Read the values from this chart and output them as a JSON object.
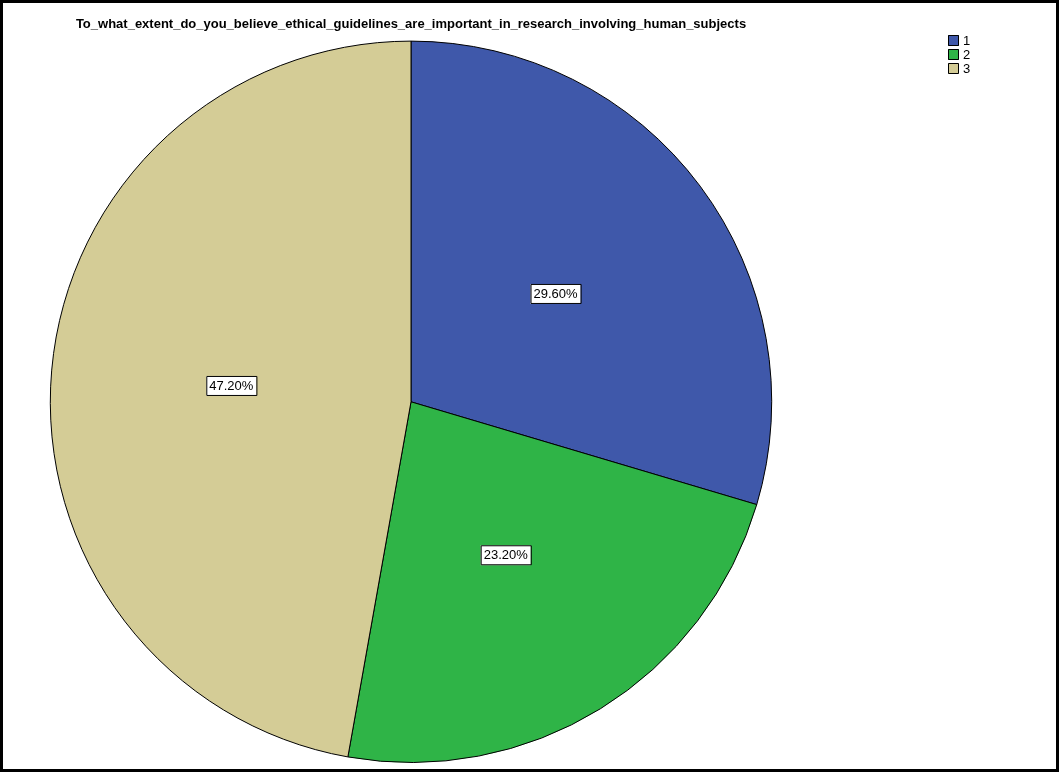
{
  "chart_data": {
    "type": "pie",
    "title": "To_what_extent_do_you_believe_ethical_guidelines_are_important_in_research_involving_human_subjects",
    "categories": [
      "1",
      "2",
      "3"
    ],
    "values": [
      29.6,
      23.2,
      47.2
    ],
    "value_labels": [
      "29.60%",
      "23.20%",
      "47.20%"
    ],
    "colors": [
      "#3f58aa",
      "#2fb447",
      "#d4cc96"
    ],
    "legend": "top right"
  }
}
